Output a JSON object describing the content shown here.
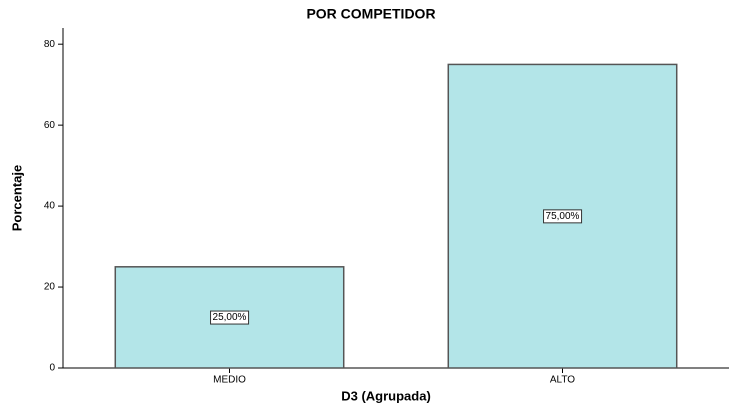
{
  "chart_data": {
    "type": "bar",
    "title": "POR COMPETIDOR",
    "x_label": "D3 (Agrupada)",
    "y_label": "Porcentaje",
    "categories": [
      "MEDIO",
      "ALTO"
    ],
    "values": [
      25,
      75
    ],
    "value_labels": [
      "25,00%",
      "75,00%"
    ],
    "color": "#b3e5e8",
    "ylim": [
      0,
      84
    ],
    "yticks": [
      0,
      20,
      40,
      60,
      80
    ],
    "grid": false
  }
}
